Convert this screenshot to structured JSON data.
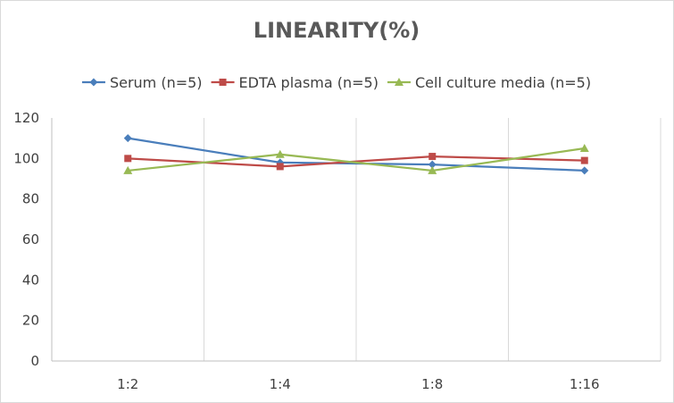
{
  "chart_data": {
    "type": "line",
    "title": "LINEARITY(%)",
    "xlabel": "",
    "ylabel": "",
    "categories": [
      "1:2",
      "1:4",
      "1:8",
      "1:16"
    ],
    "ylim": [
      0,
      120
    ],
    "yticks": [
      0,
      20,
      40,
      60,
      80,
      100,
      120
    ],
    "grid": {
      "vertical": true,
      "horizontal": false
    },
    "legend_position": "top",
    "series": [
      {
        "name": "Serum (n=5)",
        "values": [
          110,
          98,
          97,
          94
        ],
        "color": "#4a7ebb",
        "marker": "diamond"
      },
      {
        "name": "EDTA plasma (n=5)",
        "values": [
          100,
          96,
          101,
          99
        ],
        "color": "#be4b48",
        "marker": "square"
      },
      {
        "name": "Cell culture media (n=5)",
        "values": [
          94,
          102,
          94,
          105
        ],
        "color": "#98b954",
        "marker": "triangle"
      }
    ]
  }
}
